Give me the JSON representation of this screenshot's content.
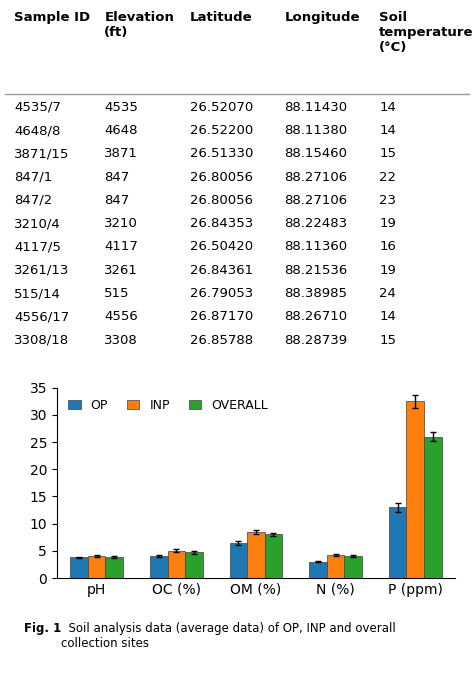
{
  "chart_data": [
    {
      "type": "table",
      "columns": [
        "Sample ID",
        "Elevation\n(ft)",
        "Latitude",
        "Longitude",
        "Soil\ntemperature\n(°C)"
      ],
      "rows": [
        [
          "4535/7",
          "4535",
          "26.52070",
          "88.11430",
          "14"
        ],
        [
          "4648/8",
          "4648",
          "26.52200",
          "88.11380",
          "14"
        ],
        [
          "3871/15",
          "3871",
          "26.51330",
          "88.15460",
          "15"
        ],
        [
          "847/1",
          "847",
          "26.80056",
          "88.27106",
          "22"
        ],
        [
          "847/2",
          "847",
          "26.80056",
          "88.27106",
          "23"
        ],
        [
          "3210/4",
          "3210",
          "26.84353",
          "88.22483",
          "19"
        ],
        [
          "4117/5",
          "4117",
          "26.50420",
          "88.11360",
          "16"
        ],
        [
          "3261/13",
          "3261",
          "26.84361",
          "88.21536",
          "19"
        ],
        [
          "515/14",
          "515",
          "26.79053",
          "88.38985",
          "24"
        ],
        [
          "4556/17",
          "4556",
          "26.87170",
          "88.26710",
          "14"
        ],
        [
          "3308/18",
          "3308",
          "26.85788",
          "88.28739",
          "15"
        ]
      ]
    },
    {
      "type": "bar",
      "categories": [
        "pH",
        "OC (%)",
        "OM (%)",
        "N (%)",
        "P (ppm)"
      ],
      "series": [
        {
          "name": "OP",
          "values": [
            3.8,
            4.0,
            6.5,
            3.0,
            13.0
          ],
          "errors": [
            0.15,
            0.15,
            0.35,
            0.15,
            0.8
          ]
        },
        {
          "name": "INP",
          "values": [
            4.0,
            5.0,
            8.5,
            4.3,
            32.5
          ],
          "errors": [
            0.15,
            0.25,
            0.35,
            0.2,
            1.2
          ]
        },
        {
          "name": "OVERALL",
          "values": [
            3.9,
            4.7,
            8.0,
            4.0,
            26.0
          ],
          "errors": [
            0.15,
            0.2,
            0.35,
            0.2,
            0.8
          ]
        }
      ],
      "ylim": [
        0,
        35
      ],
      "yticks": [
        0,
        5,
        10,
        15,
        20,
        25,
        30,
        35
      ],
      "legend": "upper left",
      "annotations": [
        "Fig. 1",
        "  Soil analysis data (average data) of OP, INP and overall\ncollection sites"
      ]
    }
  ]
}
